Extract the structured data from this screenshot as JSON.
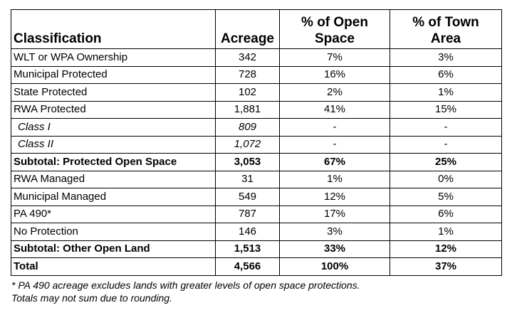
{
  "headers": {
    "classification": "Classification",
    "acreage": "Acreage",
    "pct_open_line1": "% of Open",
    "pct_open_line2": "Space",
    "pct_town_line1": "% of Town",
    "pct_town_line2": "Area"
  },
  "rows": [
    {
      "label": "WLT or WPA Ownership",
      "acreage": "342",
      "pct_open": "7%",
      "pct_town": "3%"
    },
    {
      "label": "Municipal Protected",
      "acreage": "728",
      "pct_open": "16%",
      "pct_town": "6%"
    },
    {
      "label": "State Protected",
      "acreage": "102",
      "pct_open": "2%",
      "pct_town": "1%"
    },
    {
      "label": "RWA Protected",
      "acreage": "1,881",
      "pct_open": "41%",
      "pct_town": "15%"
    },
    {
      "label": "Class I",
      "acreage": "809",
      "pct_open": "-",
      "pct_town": "-"
    },
    {
      "label": "Class II",
      "acreage": "1,072",
      "pct_open": "-",
      "pct_town": "-"
    },
    {
      "label": "Subtotal: Protected Open Space",
      "acreage": "3,053",
      "pct_open": "67%",
      "pct_town": "25%"
    },
    {
      "label": "RWA Managed",
      "acreage": "31",
      "pct_open": "1%",
      "pct_town": "0%"
    },
    {
      "label": "Municipal Managed",
      "acreage": "549",
      "pct_open": "12%",
      "pct_town": "5%"
    },
    {
      "label": "PA 490*",
      "acreage": "787",
      "pct_open": "17%",
      "pct_town": "6%"
    },
    {
      "label": "No Protection",
      "acreage": "146",
      "pct_open": "3%",
      "pct_town": "1%"
    },
    {
      "label": "Subtotal: Other Open Land",
      "acreage": "1,513",
      "pct_open": "33%",
      "pct_town": "12%"
    },
    {
      "label": "Total",
      "acreage": "4,566",
      "pct_open": "100%",
      "pct_town": "37%"
    }
  ],
  "notes": {
    "line1": "* PA 490 acreage excludes lands with greater levels of open space protections.",
    "line2": "Totals may not sum due to rounding."
  }
}
